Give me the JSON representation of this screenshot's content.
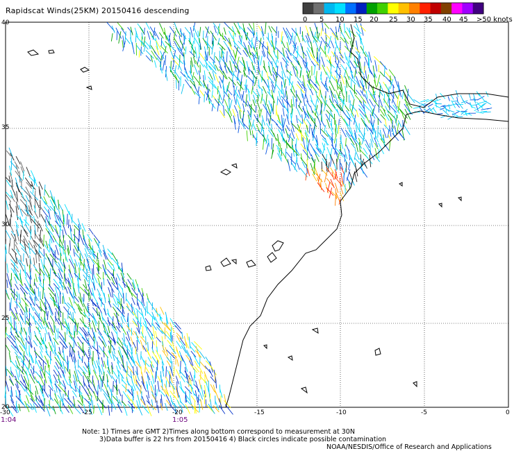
{
  "title": "Rapidscat Winds(25KM) 20150416 descending",
  "legend": {
    "labels": [
      "0",
      "5",
      "10",
      "15",
      "20",
      "25",
      "30",
      "35",
      "40",
      "45",
      ">50 knots"
    ],
    "colors": [
      "#404040",
      "#707070",
      "#00b8f0",
      "#00e0ff",
      "#0070ff",
      "#0020c0",
      "#00a000",
      "#40d000",
      "#ffff00",
      "#ffc000",
      "#ff8000",
      "#ff2000",
      "#c00000",
      "#804000",
      "#ff00ff",
      "#a000ff",
      "#400080"
    ]
  },
  "axes": {
    "lat_labels": [
      "40",
      "35",
      "30",
      "25",
      "20"
    ],
    "lon_labels": [
      "-30",
      "-25",
      "-20",
      "-15",
      "-10",
      "-5",
      "0"
    ]
  },
  "times": {
    "left": "1:04",
    "mid": "1:05"
  },
  "notes": {
    "line1": "Note: 1) Times are GMT  2)Times along bottom correspond to measurement at 30N",
    "line2": "3)Data buffer is 22 hrs from 20150416  4) Black circles indicate possible contamination",
    "line3": "NOAA/NESDIS/Office of Research and Applications"
  }
}
